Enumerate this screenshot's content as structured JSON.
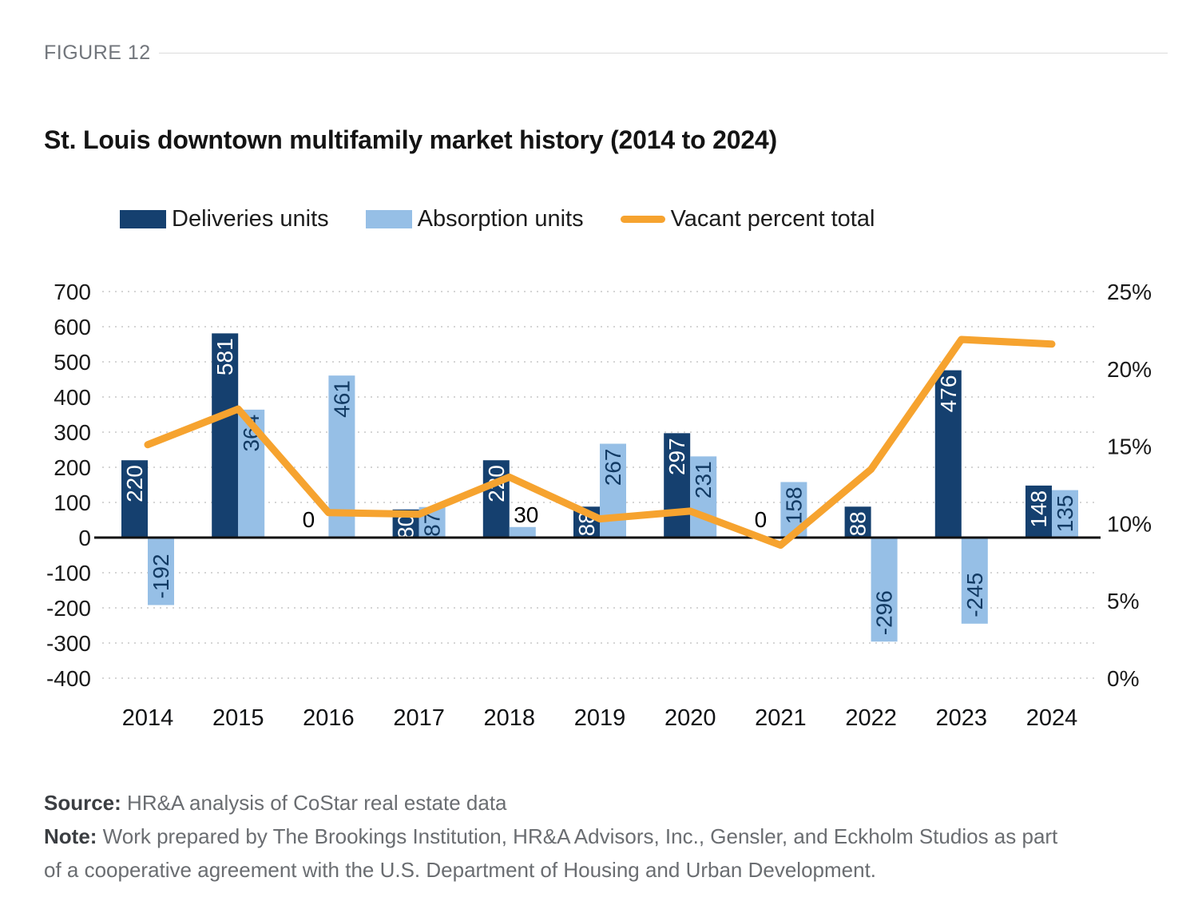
{
  "figure_label": "FIGURE 12",
  "title": "St. Louis downtown multifamily market history (2014 to 2024)",
  "chart_data": {
    "type": "combo",
    "categories": [
      "2014",
      "2015",
      "2016",
      "2017",
      "2018",
      "2019",
      "2020",
      "2021",
      "2022",
      "2023",
      "2024"
    ],
    "series": [
      {
        "name": "Deliveries units",
        "type": "bar",
        "axis": "left",
        "color": "#15406F",
        "values": [
          220,
          581,
          0,
          80,
          220,
          88,
          297,
          0,
          88,
          476,
          148
        ]
      },
      {
        "name": "Absorption units",
        "type": "bar",
        "axis": "left",
        "color": "#96BFE6",
        "values": [
          -192,
          364,
          461,
          87,
          30,
          267,
          231,
          158,
          -296,
          -245,
          135
        ]
      },
      {
        "name": "Vacant percent total",
        "type": "line",
        "axis": "right",
        "color": "#F6A32F",
        "values": [
          15.1,
          17.4,
          10.7,
          10.6,
          13.0,
          10.3,
          10.8,
          8.6,
          13.5,
          21.9,
          21.6
        ]
      }
    ],
    "left_axis": {
      "min": -400,
      "max": 700,
      "step": 100,
      "tick_labels": [
        "700",
        "600",
        "500",
        "400",
        "300",
        "200",
        "100",
        "0",
        "-100",
        "-200",
        "-300",
        "-400"
      ]
    },
    "right_axis": {
      "min": 0,
      "max": 25,
      "step": 5,
      "tick_labels": [
        "25%",
        "20%",
        "15%",
        "10%",
        "5%",
        "0%"
      ]
    },
    "grid": "dotted-horizontal",
    "legend_position": "top",
    "bar_label_color_dark_series": "#FFFFFF",
    "bar_label_color_light_series": "#123A63",
    "outside_label_color": "#000000",
    "axis_line_color": "#111111",
    "gridline_color": "#CFCFCF"
  },
  "source": {
    "label": "Source:",
    "text": " HR&A analysis of CoStar real estate data"
  },
  "note": {
    "label": "Note:",
    "lines": [
      " Work prepared by The Brookings Institution, HR&A Advisors, Inc., Gensler, and Eckholm Studios as part",
      "of a cooperative agreement with the U.S. Department of Housing and Urban Development."
    ]
  }
}
